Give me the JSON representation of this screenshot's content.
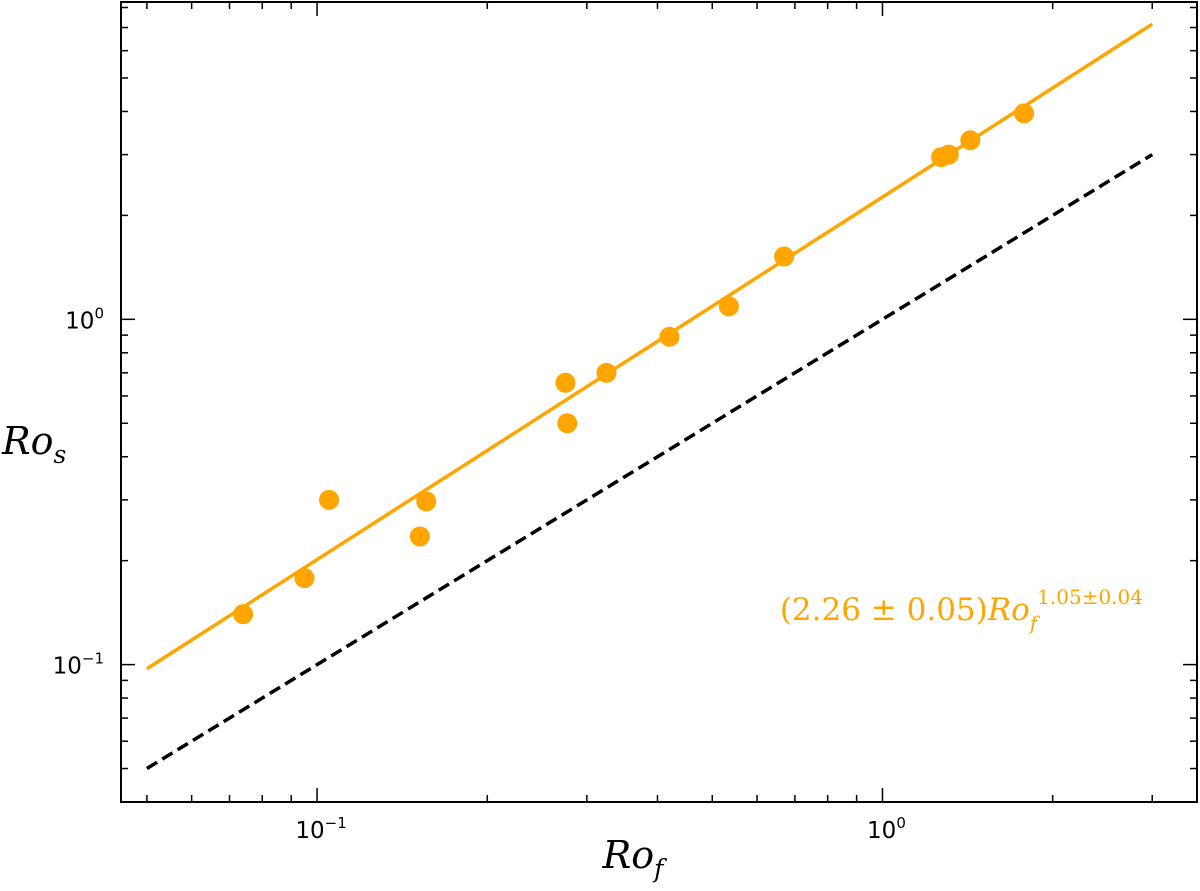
{
  "chart_data": {
    "type": "scatter",
    "x_scale": "log",
    "y_scale": "log",
    "xlim": [
      0.045,
      3.6
    ],
    "ylim": [
      0.04,
      8.3
    ],
    "xlabel": {
      "base": "Ro",
      "sub": "f"
    },
    "ylabel": {
      "base": "Ro",
      "sub": "s"
    },
    "x_ticks": [
      {
        "value": 0.1,
        "base": "10",
        "exp": "−1"
      },
      {
        "value": 1,
        "base": "10",
        "exp": "0"
      }
    ],
    "y_ticks": [
      {
        "value": 0.1,
        "base": "10",
        "exp": "−1"
      },
      {
        "value": 1,
        "base": "10",
        "exp": "0"
      }
    ],
    "grid": false,
    "series": [
      {
        "kind": "points",
        "color": "#FFA500",
        "x": [
          0.074,
          0.095,
          0.105,
          0.152,
          0.156,
          0.275,
          0.277,
          0.325,
          0.42,
          0.535,
          0.67,
          1.27,
          1.31,
          1.43,
          1.78
        ],
        "y": [
          0.14,
          0.178,
          0.3,
          0.235,
          0.297,
          0.655,
          0.5,
          0.7,
          0.89,
          1.09,
          1.52,
          2.95,
          3.0,
          3.3,
          3.95
        ]
      },
      {
        "kind": "fit-line",
        "color": "#FFA500",
        "coef": 2.26,
        "exponent": 1.05,
        "x_range": [
          0.05,
          3.0
        ]
      },
      {
        "kind": "reference-line",
        "color": "#000000",
        "dashed": true,
        "coef": 1.0,
        "exponent": 1.0,
        "x_range": [
          0.05,
          3.0
        ]
      }
    ],
    "annotation": {
      "color": "#FFA500",
      "prefix": "(2.26 ± 0.05)",
      "base": "Ro",
      "sub": "f",
      "sup": "1.05±0.04",
      "position": "lower-right"
    }
  }
}
